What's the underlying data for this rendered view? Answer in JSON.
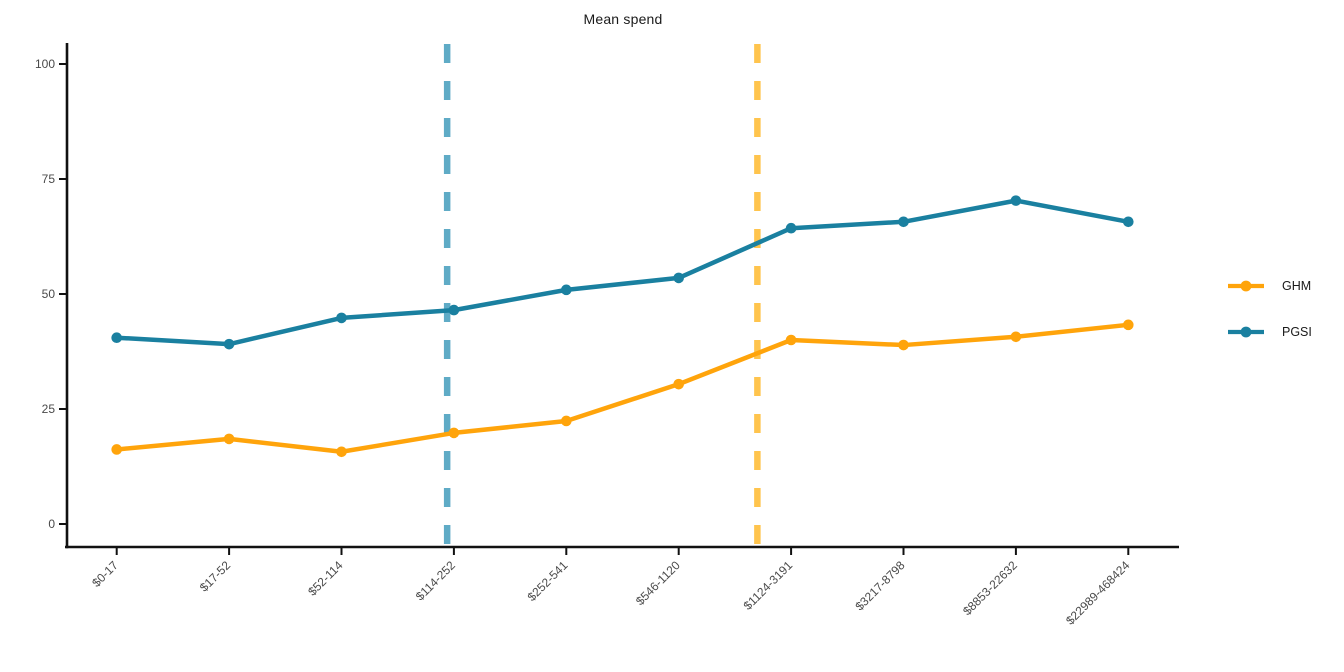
{
  "chart_data": {
    "type": "line",
    "title": "Mean spend",
    "categories": [
      "$0-17",
      "$17-52",
      "$52-114",
      "$114-252",
      "$252-541",
      "$546-1120",
      "$1124-3191",
      "$3217-8798",
      "$8853-22632",
      "$22989-468424"
    ],
    "series": [
      {
        "name": "GHM",
        "color": "#FFA40B",
        "values": [
          16.2,
          18.5,
          15.7,
          19.8,
          22.4,
          30.4,
          40.0,
          38.9,
          40.7,
          43.3
        ]
      },
      {
        "name": "PGSI",
        "color": "#1A80A0",
        "values": [
          40.5,
          39.1,
          44.8,
          46.5,
          50.9,
          53.5,
          64.3,
          65.7,
          70.3,
          65.7
        ]
      }
    ],
    "vlines": [
      {
        "name": "pgsi-vline",
        "x_index": 2.94,
        "color": "#5FABC6",
        "style": "dashed"
      },
      {
        "name": "ghm-vline",
        "x_index": 5.7,
        "color": "#FFC44D",
        "style": "dashed"
      }
    ],
    "xlabel": "",
    "ylabel": "",
    "ylim": [
      0,
      100
    ],
    "yticks": [
      0,
      25,
      50,
      75,
      100
    ],
    "grid": false,
    "legend_position": "right",
    "appearance": {
      "axis_color": "#111111",
      "tick_label_color": "#4a4a4a",
      "title_color": "#1a1a1a",
      "background": "#ffffff"
    }
  }
}
